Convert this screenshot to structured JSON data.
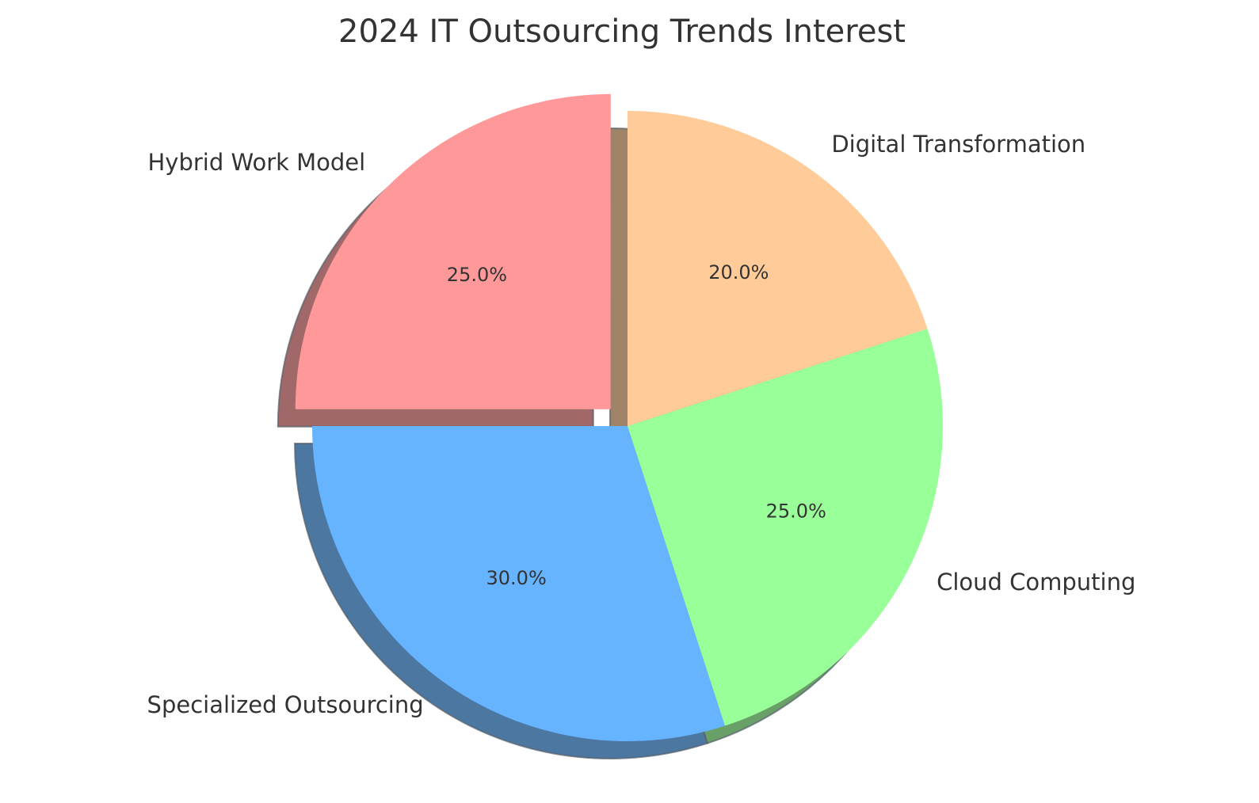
{
  "chart_data": {
    "type": "pie",
    "title": "2024 IT Outsourcing Trends Interest",
    "start_angle": 90,
    "counterclock": true,
    "categories": [
      "Hybrid Work Model",
      "Specialized Outsourcing",
      "Cloud Computing",
      "Digital Transformation"
    ],
    "values": [
      25.0,
      30.0,
      25.0,
      20.0
    ],
    "percent_labels": [
      "25.0%",
      "30.0%",
      "25.0%",
      "20.0%"
    ],
    "colors": [
      "#ff9999",
      "#66b3ff",
      "#99ff99",
      "#ffcc99"
    ],
    "exploded": [
      true,
      false,
      false,
      false
    ],
    "shadow": true
  }
}
